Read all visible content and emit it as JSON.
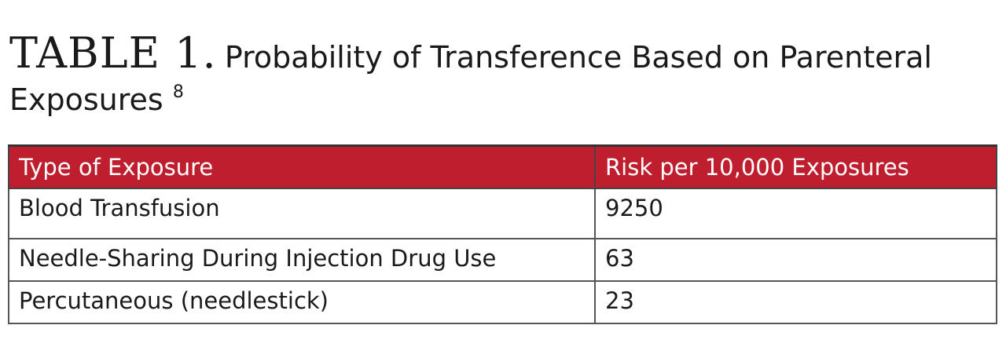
{
  "caption": {
    "label": "TABLE 1.",
    "title_line1": "Probability of Transference Based on Parenteral",
    "title_line2": "Exposures",
    "ref": "8"
  },
  "table": {
    "headers": [
      "Type of Exposure",
      "Risk per 10,000 Exposures"
    ],
    "rows": [
      [
        "Blood Transfusion",
        "9250"
      ],
      [
        "Needle-Sharing During Injection Drug Use",
        "63"
      ],
      [
        "Percutaneous (needlestick)",
        "23"
      ]
    ]
  },
  "colors": {
    "header_bg": "#bf1e2e",
    "header_text": "#ffffff",
    "border": "#444444",
    "text": "#1a1a1a"
  }
}
